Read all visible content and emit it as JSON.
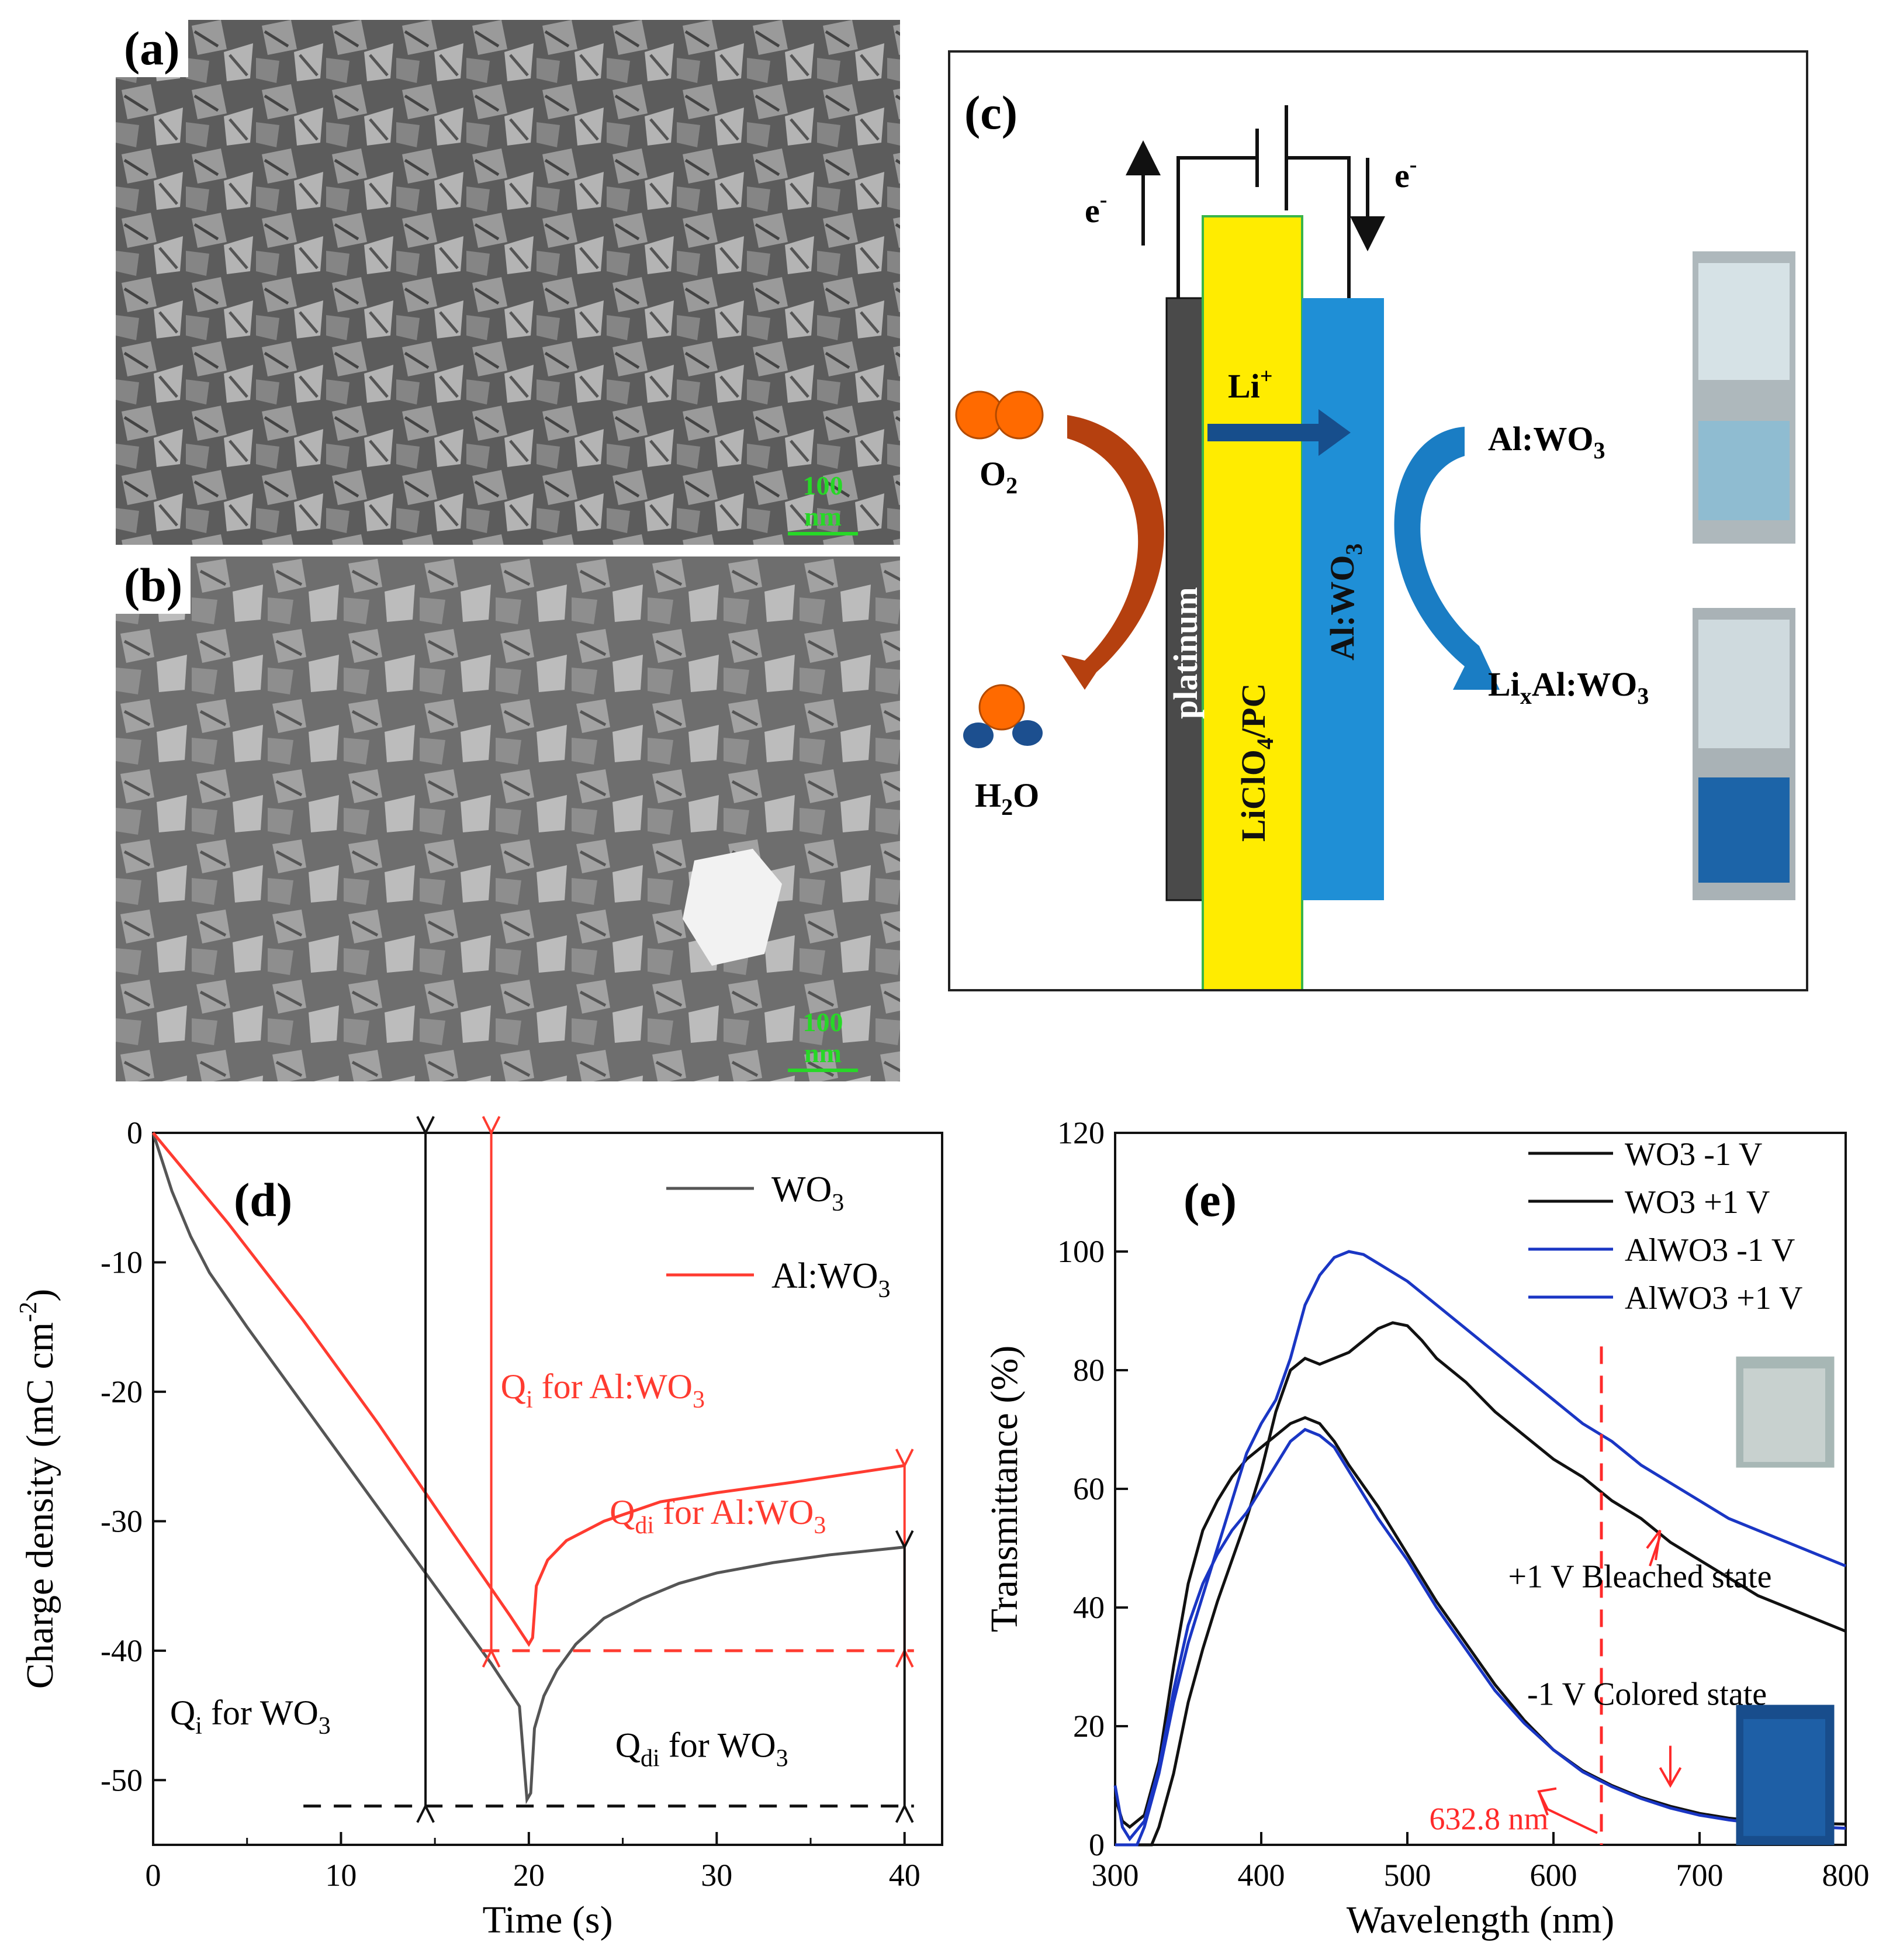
{
  "panels": {
    "a": {
      "label": "(a)",
      "scalebar": "100 nm"
    },
    "b": {
      "label": "(b)",
      "scalebar": "100 nm"
    },
    "c": {
      "label": "(c)",
      "electron_left": "e",
      "electron_right": "e",
      "electron_sup": "-",
      "li_ion": "Li",
      "li_sup": "+",
      "o2": "O",
      "o2_sub": "2",
      "h2o_h": "H",
      "h2o_sub": "2",
      "h2o_o": "O",
      "electrode_left": "platinum",
      "electrolyte": "LiClO",
      "electrolyte_sub": "4",
      "electrolyte_tail": "/PC",
      "electrode_right": "Al:WO",
      "electrode_right_sub": "3",
      "state_top": "Al:WO",
      "state_top_sub": "3",
      "state_bottom_pre": "Li",
      "state_bottom_x": "x",
      "state_bottom": "Al:WO",
      "state_bottom_sub": "3",
      "colors": {
        "platinum": "#4a4a4a",
        "electrolyte": "#ffec00",
        "wo3": "#1f8fd6",
        "arrow_left": "#b5400f",
        "arrow_right": "#1a7dc4",
        "li_arrow": "#174e8c"
      }
    }
  },
  "chart_data": [
    {
      "id": "d",
      "label": "(d)",
      "type": "line",
      "xlabel": "Time (s)",
      "ylabel": "Charge density (mC cm",
      "ylabel_sup": "-2",
      "ylabel_tail": ")",
      "xlim": [
        0,
        42
      ],
      "ylim": [
        -55,
        0
      ],
      "xticks": [
        0,
        10,
        20,
        30,
        40
      ],
      "yticks": [
        0,
        -10,
        -20,
        -30,
        -40,
        -50
      ],
      "series": [
        {
          "name": "WO",
          "name_sub": "3",
          "color": "#555555",
          "points": [
            [
              0,
              0
            ],
            [
              1,
              -4.5
            ],
            [
              2,
              -8
            ],
            [
              3,
              -10.8
            ],
            [
              5,
              -15
            ],
            [
              8,
              -21
            ],
            [
              10,
              -25
            ],
            [
              12,
              -29
            ],
            [
              14,
              -33
            ],
            [
              16,
              -37
            ],
            [
              18,
              -41
            ],
            [
              19.5,
              -44.3
            ],
            [
              19.9,
              -51.5
            ],
            [
              20.1,
              -51
            ],
            [
              20.3,
              -46
            ],
            [
              20.8,
              -43.5
            ],
            [
              21.5,
              -41.5
            ],
            [
              22.5,
              -39.5
            ],
            [
              24,
              -37.5
            ],
            [
              26,
              -36
            ],
            [
              28,
              -34.8
            ],
            [
              30,
              -34
            ],
            [
              33,
              -33.2
            ],
            [
              36,
              -32.6
            ],
            [
              40,
              -32
            ]
          ]
        },
        {
          "name": "Al:WO",
          "name_sub": "3",
          "color": "#ff3b30",
          "points": [
            [
              0,
              0
            ],
            [
              4,
              -7
            ],
            [
              8,
              -14.5
            ],
            [
              12,
              -22.5
            ],
            [
              16,
              -31
            ],
            [
              19,
              -37.3
            ],
            [
              20,
              -39.5
            ],
            [
              20.2,
              -39
            ],
            [
              20.4,
              -35
            ],
            [
              21,
              -33
            ],
            [
              22,
              -31.5
            ],
            [
              24,
              -30
            ],
            [
              27,
              -28.5
            ],
            [
              30,
              -27.8
            ],
            [
              34,
              -27
            ],
            [
              40,
              -25.7
            ]
          ]
        }
      ],
      "annotations": {
        "qi_al": "Q",
        "qi_al_sub": "i",
        "qi_al_tail": " for Al:WO",
        "qi_al_tail_sub": "3",
        "qdi_al": "Q",
        "qdi_al_sub": "di",
        "qdi_al_tail": " for Al:WO",
        "qdi_al_tail_sub": "3",
        "qi_wo": "Q",
        "qi_wo_sub": "i",
        "qi_wo_tail": " for WO",
        "qi_wo_tail_sub": "3",
        "qdi_wo": "Q",
        "qdi_wo_sub": "di",
        "qdi_wo_tail": " for WO",
        "qdi_wo_tail_sub": "3"
      }
    },
    {
      "id": "e",
      "label": "(e)",
      "type": "line",
      "xlabel": "Wavelength (nm)",
      "ylabel": "Transmittance (%)",
      "xlim": [
        300,
        800
      ],
      "ylim": [
        0,
        120
      ],
      "xticks": [
        300,
        400,
        500,
        600,
        700,
        800
      ],
      "yticks": [
        0,
        20,
        40,
        60,
        80,
        100,
        120
      ],
      "series": [
        {
          "name": "WO3 -1 V",
          "color": "#111111",
          "points": [
            [
              300,
              8
            ],
            [
              305,
              4
            ],
            [
              310,
              3
            ],
            [
              320,
              5
            ],
            [
              330,
              14
            ],
            [
              340,
              30
            ],
            [
              350,
              44
            ],
            [
              360,
              53
            ],
            [
              370,
              58
            ],
            [
              380,
              62
            ],
            [
              390,
              65
            ],
            [
              400,
              67
            ],
            [
              410,
              69
            ],
            [
              420,
              71
            ],
            [
              430,
              72
            ],
            [
              440,
              71
            ],
            [
              450,
              68
            ],
            [
              460,
              64
            ],
            [
              480,
              57
            ],
            [
              500,
              49
            ],
            [
              520,
              41
            ],
            [
              540,
              34
            ],
            [
              560,
              27
            ],
            [
              580,
              21
            ],
            [
              600,
              16
            ],
            [
              620,
              12.5
            ],
            [
              640,
              10
            ],
            [
              660,
              8
            ],
            [
              680,
              6.5
            ],
            [
              700,
              5.3
            ],
            [
              720,
              4.5
            ],
            [
              740,
              4
            ],
            [
              760,
              3.7
            ],
            [
              780,
              3.6
            ],
            [
              800,
              3.5
            ]
          ]
        },
        {
          "name": "WO3 +1 V",
          "color": "#111111",
          "points": [
            [
              300,
              0
            ],
            [
              325,
              0
            ],
            [
              330,
              3
            ],
            [
              340,
              12
            ],
            [
              350,
              24
            ],
            [
              360,
              33
            ],
            [
              370,
              41
            ],
            [
              380,
              48
            ],
            [
              390,
              55
            ],
            [
              400,
              63
            ],
            [
              410,
              73
            ],
            [
              420,
              80
            ],
            [
              430,
              82
            ],
            [
              440,
              81
            ],
            [
              450,
              82
            ],
            [
              460,
              83
            ],
            [
              470,
              85
            ],
            [
              480,
              87
            ],
            [
              490,
              88
            ],
            [
              500,
              87.5
            ],
            [
              510,
              85
            ],
            [
              520,
              82
            ],
            [
              540,
              78
            ],
            [
              560,
              73
            ],
            [
              580,
              69
            ],
            [
              600,
              65
            ],
            [
              620,
              62
            ],
            [
              640,
              58
            ],
            [
              660,
              55
            ],
            [
              680,
              51
            ],
            [
              700,
              48
            ],
            [
              720,
              45
            ],
            [
              740,
              42
            ],
            [
              760,
              40
            ],
            [
              780,
              38
            ],
            [
              800,
              36
            ]
          ]
        },
        {
          "name": "AlWO3 -1 V",
          "color": "#1a36c4",
          "points": [
            [
              300,
              10
            ],
            [
              305,
              3
            ],
            [
              310,
              1
            ],
            [
              320,
              4
            ],
            [
              330,
              13
            ],
            [
              340,
              26
            ],
            [
              350,
              37
            ],
            [
              360,
              44
            ],
            [
              370,
              49
            ],
            [
              380,
              53
            ],
            [
              390,
              56
            ],
            [
              400,
              60
            ],
            [
              410,
              64
            ],
            [
              420,
              68
            ],
            [
              430,
              70
            ],
            [
              440,
              69
            ],
            [
              450,
              67
            ],
            [
              460,
              63
            ],
            [
              480,
              55
            ],
            [
              500,
              48
            ],
            [
              520,
              40
            ],
            [
              540,
              33
            ],
            [
              560,
              26
            ],
            [
              580,
              20.5
            ],
            [
              600,
              16
            ],
            [
              620,
              12.3
            ],
            [
              640,
              9.8
            ],
            [
              660,
              7.8
            ],
            [
              680,
              6.2
            ],
            [
              700,
              5
            ],
            [
              720,
              4.2
            ],
            [
              740,
              3.6
            ],
            [
              760,
              3.2
            ],
            [
              780,
              3
            ],
            [
              800,
              2.8
            ]
          ]
        },
        {
          "name": "AlWO3 +1 V",
          "color": "#1a36c4",
          "points": [
            [
              300,
              0
            ],
            [
              315,
              0
            ],
            [
              320,
              3
            ],
            [
              330,
              12
            ],
            [
              340,
              24
            ],
            [
              350,
              34
            ],
            [
              360,
              42
            ],
            [
              370,
              50
            ],
            [
              380,
              58
            ],
            [
              390,
              66
            ],
            [
              400,
              71
            ],
            [
              410,
              75
            ],
            [
              420,
              82
            ],
            [
              430,
              91
            ],
            [
              440,
              96
            ],
            [
              450,
              99
            ],
            [
              460,
              100
            ],
            [
              470,
              99.5
            ],
            [
              480,
              98
            ],
            [
              500,
              95
            ],
            [
              520,
              91
            ],
            [
              540,
              87
            ],
            [
              560,
              83
            ],
            [
              580,
              79
            ],
            [
              600,
              75
            ],
            [
              620,
              71
            ],
            [
              640,
              68
            ],
            [
              660,
              64
            ],
            [
              680,
              61
            ],
            [
              700,
              58
            ],
            [
              720,
              55
            ],
            [
              740,
              53
            ],
            [
              760,
              51
            ],
            [
              780,
              49
            ],
            [
              800,
              47
            ]
          ]
        }
      ],
      "annotations": {
        "marker_label": "632.8 nm",
        "marker_x": 632.8,
        "bleached": "+1 V Bleached state",
        "colored": "-1 V Colored state"
      }
    }
  ]
}
